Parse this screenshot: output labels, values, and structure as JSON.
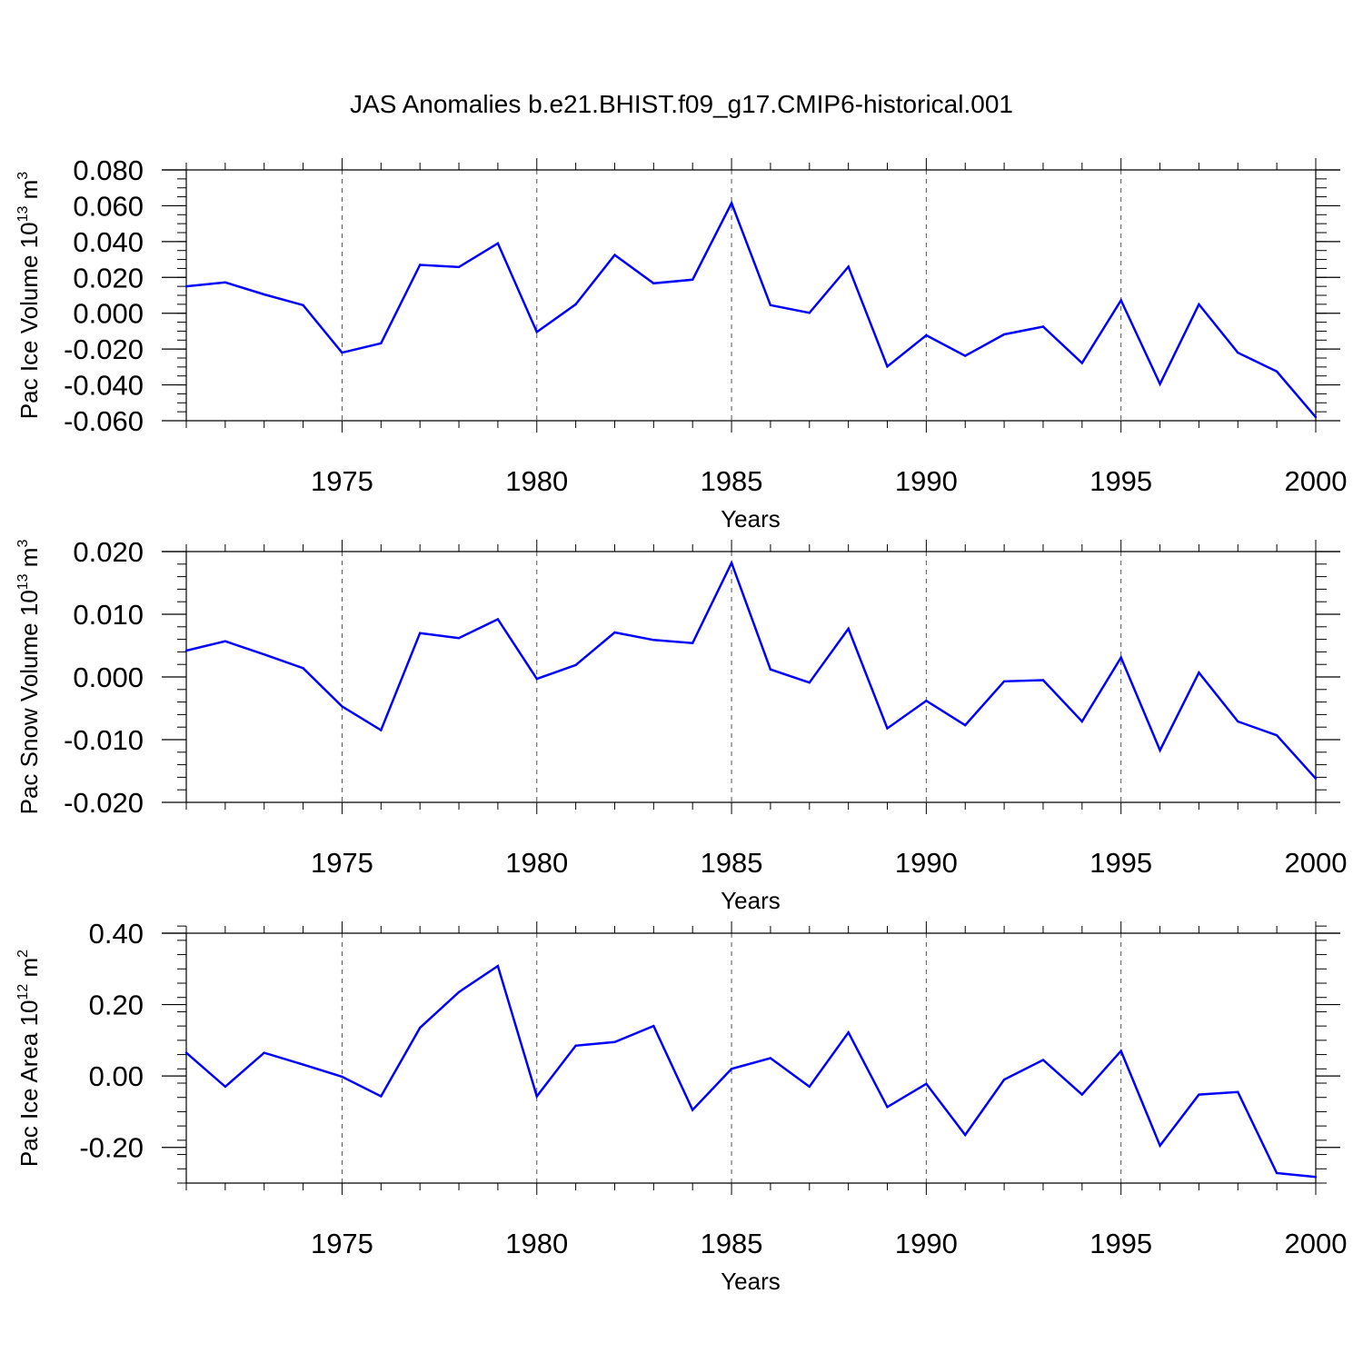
{
  "title": "JAS Anomalies b.e21.BHIST.f09_g17.CMIP6-historical.001",
  "colors": {
    "line": "#0000ff",
    "axis": "#000000",
    "grid": "#555555",
    "background": "#ffffff"
  },
  "chart_data": [
    {
      "type": "line",
      "xlabel": "Years",
      "ylabel": {
        "text": "Pac Ice Volume 10",
        "exp": "13",
        "unit": " m",
        "unit_exp": "3"
      },
      "xlim": [
        1971,
        2000
      ],
      "ylim": [
        -0.06,
        0.08
      ],
      "yticks": [
        -0.06,
        -0.04,
        -0.02,
        0.0,
        0.02,
        0.04,
        0.06,
        0.08
      ],
      "ytick_labels": [
        "-0.060",
        "-0.040",
        "-0.020",
        "0.000",
        "0.020",
        "0.040",
        "0.060",
        "0.080"
      ],
      "y_minor_step": 0.005,
      "xticks": [
        1975,
        1980,
        1985,
        1990,
        1995,
        2000
      ],
      "xtick_labels": [
        "1975",
        "1980",
        "1985",
        "1990",
        "1995",
        "2000"
      ],
      "x_grid": "vertical dashed at major x ticks",
      "x": [
        1971,
        1972,
        1973,
        1974,
        1975,
        1976,
        1977,
        1978,
        1979,
        1980,
        1981,
        1982,
        1983,
        1984,
        1985,
        1986,
        1987,
        1988,
        1989,
        1990,
        1991,
        1992,
        1993,
        1994,
        1995,
        1996,
        1997,
        1998,
        1999,
        2000
      ],
      "values": [
        0.015,
        0.0172,
        0.0105,
        0.0045,
        -0.022,
        -0.0168,
        0.027,
        0.0258,
        0.039,
        -0.0105,
        0.005,
        0.0325,
        0.0167,
        0.0187,
        0.0615,
        0.0045,
        0.0002,
        0.026,
        -0.0297,
        -0.0123,
        -0.0238,
        -0.0118,
        -0.0075,
        -0.0278,
        0.0072,
        -0.0395,
        0.005,
        -0.022,
        -0.0325,
        -0.058
      ]
    },
    {
      "type": "line",
      "xlabel": "Years",
      "ylabel": {
        "text": "Pac Snow Volume 10",
        "exp": "13",
        "unit": " m",
        "unit_exp": "3"
      },
      "xlim": [
        1971,
        2000
      ],
      "ylim": [
        -0.02,
        0.02
      ],
      "yticks": [
        -0.02,
        -0.01,
        0.0,
        0.01,
        0.02
      ],
      "ytick_labels": [
        "-0.020",
        "-0.010",
        "0.000",
        "0.010",
        "0.020"
      ],
      "y_minor_step": 0.002,
      "xticks": [
        1975,
        1980,
        1985,
        1990,
        1995,
        2000
      ],
      "xtick_labels": [
        "1975",
        "1980",
        "1985",
        "1990",
        "1995",
        "2000"
      ],
      "x_grid": "vertical dashed at major x ticks",
      "x": [
        1971,
        1972,
        1973,
        1974,
        1975,
        1976,
        1977,
        1978,
        1979,
        1980,
        1981,
        1982,
        1983,
        1984,
        1985,
        1986,
        1987,
        1988,
        1989,
        1990,
        1991,
        1992,
        1993,
        1994,
        1995,
        1996,
        1997,
        1998,
        1999,
        2000
      ],
      "values": [
        0.0042,
        0.0057,
        0.0036,
        0.0014,
        -0.0047,
        -0.0085,
        0.007,
        0.0062,
        0.0092,
        -0.0003,
        0.0019,
        0.0071,
        0.0059,
        0.0054,
        0.0182,
        0.0012,
        -0.0009,
        0.0077,
        -0.0082,
        -0.0038,
        -0.0077,
        -0.0007,
        -0.0005,
        -0.0071,
        0.0031,
        -0.0117,
        0.0007,
        -0.0071,
        -0.0093,
        -0.0162
      ]
    },
    {
      "type": "line",
      "xlabel": "Years",
      "ylabel": {
        "text": "Pac Ice Area 10",
        "exp": "12",
        "unit": " m",
        "unit_exp": "2"
      },
      "xlim": [
        1971,
        2000
      ],
      "ylim": [
        -0.3,
        0.4
      ],
      "yticks": [
        -0.2,
        0.0,
        0.2,
        0.4
      ],
      "ytick_labels": [
        "-0.20",
        "0.00",
        "0.20",
        "0.40"
      ],
      "y_minor_step": 0.04,
      "xticks": [
        1975,
        1980,
        1985,
        1990,
        1995,
        2000
      ],
      "xtick_labels": [
        "1975",
        "1980",
        "1985",
        "1990",
        "1995",
        "2000"
      ],
      "x_grid": "vertical dashed at major x ticks",
      "x": [
        1971,
        1972,
        1973,
        1974,
        1975,
        1976,
        1977,
        1978,
        1979,
        1980,
        1981,
        1982,
        1983,
        1984,
        1985,
        1986,
        1987,
        1988,
        1989,
        1990,
        1991,
        1992,
        1993,
        1994,
        1995,
        1996,
        1997,
        1998,
        1999,
        2000
      ],
      "values": [
        0.065,
        -0.03,
        0.065,
        0.032,
        -0.002,
        -0.057,
        0.135,
        0.235,
        0.308,
        -0.057,
        0.085,
        0.095,
        0.14,
        -0.095,
        0.02,
        0.05,
        -0.03,
        0.122,
        -0.087,
        -0.022,
        -0.165,
        -0.01,
        0.045,
        -0.052,
        0.07,
        -0.195,
        -0.052,
        -0.045,
        -0.272,
        -0.283
      ]
    }
  ]
}
